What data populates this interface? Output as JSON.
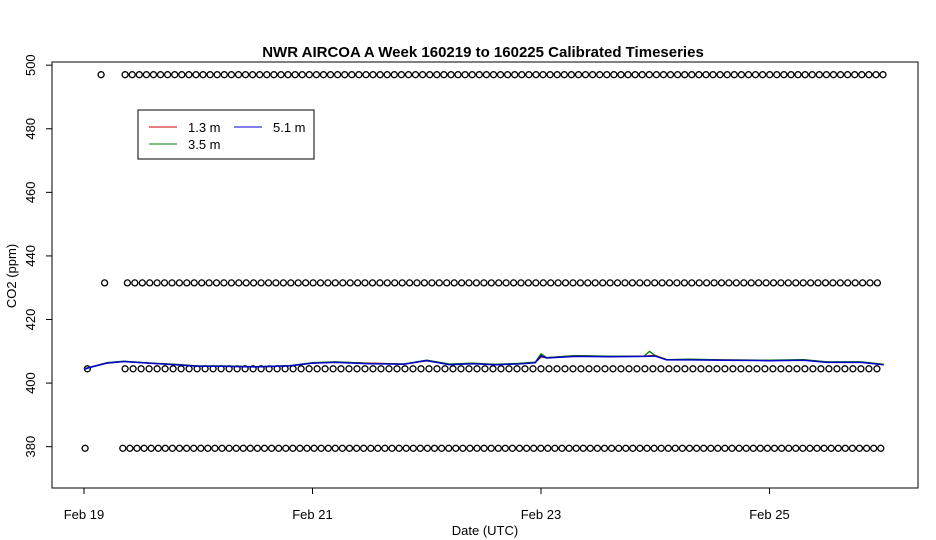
{
  "chart_data": {
    "type": "line",
    "title": "NWR AIRCOA A  Week 160219 to 160225  Calibrated Timeseries",
    "xlabel": "Date (UTC)",
    "ylabel": "CO2 (ppm)",
    "xlim": [
      -0.28,
      7.3
    ],
    "ylim": [
      367,
      501
    ],
    "x_ticks": [
      {
        "value": 0,
        "label": "Feb 19"
      },
      {
        "value": 2,
        "label": "Feb 21"
      },
      {
        "value": 4,
        "label": "Feb 23"
      },
      {
        "value": 6,
        "label": "Feb 25"
      }
    ],
    "y_ticks": [
      {
        "value": 380,
        "label": "380"
      },
      {
        "value": 400,
        "label": "400"
      },
      {
        "value": 420,
        "label": "420"
      },
      {
        "value": 440,
        "label": "440"
      },
      {
        "value": 460,
        "label": "460"
      },
      {
        "value": 480,
        "label": "480"
      },
      {
        "value": 500,
        "label": "500"
      }
    ],
    "legend": {
      "placement": "top-left",
      "entries": [
        {
          "name": "1.3 m",
          "color": "#cc0000"
        },
        {
          "name": "3.5 m",
          "color": "#008000"
        },
        {
          "name": "5.1 m",
          "color": "#0000cc"
        }
      ]
    },
    "series": [
      {
        "name": "1.3 m",
        "color": "#cc0000",
        "x": [
          0.0,
          0.05,
          0.2,
          0.35,
          0.6,
          0.8,
          1.0,
          1.2,
          1.5,
          1.8,
          2.0,
          2.2,
          2.5,
          2.8,
          3.0,
          3.2,
          3.4,
          3.6,
          3.8,
          3.95,
          4.0,
          4.05,
          4.3,
          4.6,
          4.9,
          5.0,
          5.1,
          5.3,
          5.6,
          5.9,
          6.0,
          6.3,
          6.5,
          6.8,
          7.0
        ],
        "y": [
          404.5,
          405.0,
          406.3,
          406.8,
          406.2,
          405.8,
          405.3,
          405.3,
          405.1,
          405.4,
          406.3,
          406.6,
          406.3,
          406.0,
          407.0,
          405.9,
          406.2,
          405.8,
          406.1,
          406.5,
          408.2,
          408.0,
          408.6,
          408.4,
          408.5,
          408.7,
          407.4,
          407.4,
          407.3,
          407.2,
          407.1,
          407.3,
          406.6,
          406.6,
          405.8
        ]
      },
      {
        "name": "3.5 m",
        "color": "#008000",
        "x": [
          0.0,
          0.05,
          0.2,
          0.35,
          0.6,
          0.8,
          1.0,
          1.2,
          1.5,
          1.8,
          2.0,
          2.2,
          2.5,
          2.8,
          3.0,
          3.2,
          3.4,
          3.6,
          3.8,
          3.95,
          4.0,
          4.05,
          4.3,
          4.6,
          4.9,
          4.95,
          5.0,
          5.1,
          5.3,
          5.6,
          5.9,
          6.0,
          6.3,
          6.5,
          6.8,
          7.0
        ],
        "y": [
          404.4,
          405.0,
          406.4,
          406.9,
          406.3,
          405.9,
          405.4,
          405.4,
          405.2,
          405.5,
          406.4,
          406.7,
          406.2,
          406.0,
          407.2,
          406.0,
          406.3,
          405.9,
          406.2,
          406.6,
          409.2,
          408.0,
          408.6,
          408.5,
          408.4,
          410.0,
          408.6,
          407.4,
          407.5,
          407.3,
          407.2,
          407.2,
          407.4,
          406.7,
          406.7,
          405.9
        ]
      },
      {
        "name": "5.1 m",
        "color": "#0000cc",
        "x": [
          0.0,
          0.05,
          0.2,
          0.35,
          0.6,
          0.8,
          1.0,
          1.2,
          1.5,
          1.8,
          2.0,
          2.2,
          2.5,
          2.8,
          3.0,
          3.2,
          3.4,
          3.6,
          3.8,
          3.95,
          4.0,
          4.05,
          4.3,
          4.6,
          4.9,
          5.0,
          5.1,
          5.3,
          5.6,
          5.9,
          6.0,
          6.3,
          6.5,
          6.8,
          7.0
        ],
        "y": [
          404.3,
          404.9,
          406.3,
          406.8,
          406.2,
          405.8,
          405.3,
          405.3,
          405.1,
          405.4,
          406.3,
          406.5,
          406.1,
          405.9,
          407.1,
          405.8,
          406.1,
          405.8,
          406.0,
          406.4,
          408.6,
          407.9,
          408.4,
          408.3,
          408.4,
          408.5,
          407.3,
          407.3,
          407.2,
          407.1,
          407.0,
          407.2,
          406.5,
          406.5,
          405.8
        ]
      }
    ],
    "flag_rows": [
      {
        "y": 497,
        "x_start": 0.36,
        "x_end": 7.0,
        "spacing": 0.062,
        "extra_x": [
          0.15
        ]
      },
      {
        "y": 431.5,
        "x_start": 0.38,
        "x_end": 7.0,
        "spacing": 0.065,
        "extra_x": [
          0.18
        ]
      },
      {
        "y": 404.5,
        "x_start": 0.36,
        "x_end": 7.0,
        "spacing": 0.07,
        "extra_x": [
          0.03
        ]
      },
      {
        "y": 379.5,
        "x_start": 0.34,
        "x_end": 7.0,
        "spacing": 0.062,
        "extra_x": [
          0.01
        ]
      }
    ]
  }
}
